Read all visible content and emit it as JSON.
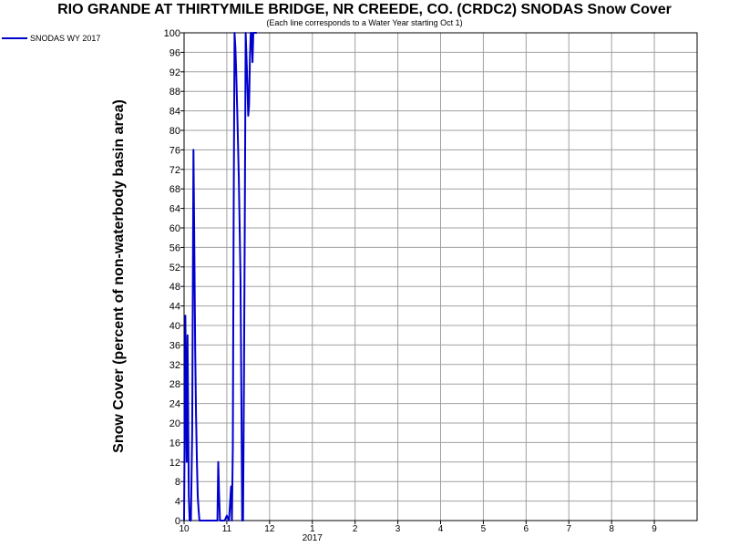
{
  "chart_data": {
    "type": "line",
    "title": "RIO GRANDE AT THIRTYMILE BRIDGE, NR CREEDE, CO. (CRDC2) SNODAS Snow Cover",
    "subtitle": "(Each line corresponds to a Water Year starting Oct 1)",
    "ylabel": "Snow Cover (percent of non-waterbody basin area)",
    "xlabel": "",
    "ylim": [
      0,
      100
    ],
    "yticks": [
      0,
      4,
      8,
      12,
      16,
      20,
      24,
      28,
      32,
      36,
      40,
      44,
      48,
      52,
      56,
      60,
      64,
      68,
      72,
      76,
      80,
      84,
      88,
      92,
      96,
      100
    ],
    "xlim": [
      0,
      12
    ],
    "xticks": [
      {
        "pos": 0,
        "label": "10"
      },
      {
        "pos": 1,
        "label": "11"
      },
      {
        "pos": 2,
        "label": "12"
      },
      {
        "pos": 3,
        "label": "1"
      },
      {
        "pos": 4,
        "label": "2"
      },
      {
        "pos": 5,
        "label": "3"
      },
      {
        "pos": 6,
        "label": "4"
      },
      {
        "pos": 7,
        "label": "5"
      },
      {
        "pos": 8,
        "label": "6"
      },
      {
        "pos": 9,
        "label": "7"
      },
      {
        "pos": 10,
        "label": "8"
      },
      {
        "pos": 11,
        "label": "9"
      }
    ],
    "year_label": {
      "pos": 3,
      "label": "2017"
    },
    "grid": true,
    "legend_position": "top-left",
    "series": [
      {
        "name": "SNODAS WY 2017",
        "color": "#0000cc",
        "x": [
          0.0,
          0.03,
          0.06,
          0.08,
          0.11,
          0.13,
          0.16,
          0.19,
          0.22,
          0.24,
          0.26,
          0.28,
          0.3,
          0.32,
          0.34,
          0.36,
          0.38,
          0.4,
          0.42,
          0.45,
          0.5,
          0.6,
          0.7,
          0.78,
          0.8,
          0.82,
          0.84,
          0.86,
          0.88,
          0.9,
          0.95,
          1.0,
          1.05,
          1.1,
          1.12,
          1.14,
          1.16,
          1.18,
          1.2,
          1.22,
          1.24,
          1.26,
          1.28,
          1.3,
          1.32,
          1.34,
          1.36,
          1.38,
          1.4,
          1.42,
          1.44,
          1.46,
          1.48,
          1.5,
          1.52,
          1.54,
          1.56,
          1.58,
          1.6,
          1.62,
          1.64,
          1.66,
          1.68,
          1.7
        ],
        "y": [
          0,
          42,
          12,
          38,
          5,
          0,
          0,
          18,
          76,
          55,
          35,
          22,
          12,
          5,
          2,
          0,
          0,
          0,
          0,
          0,
          0,
          0,
          0,
          0,
          12,
          5,
          0,
          0,
          0,
          0,
          0,
          1,
          0,
          7,
          0,
          15,
          62,
          100,
          97,
          92,
          85,
          78,
          70,
          60,
          50,
          25,
          0,
          0,
          28,
          60,
          100,
          95,
          90,
          83,
          85,
          95,
          100,
          100,
          94,
          100,
          100,
          100,
          100,
          100
        ]
      }
    ]
  }
}
